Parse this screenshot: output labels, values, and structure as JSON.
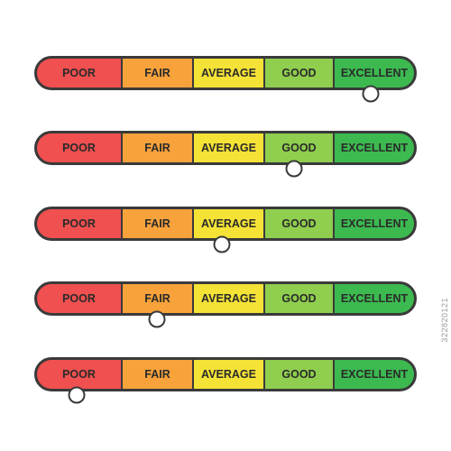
{
  "levels": [
    {
      "label": "POOR",
      "color": "#f0504f"
    },
    {
      "label": "FAIR",
      "color": "#f7a23b"
    },
    {
      "label": "AVERAGE",
      "color": "#f4e236"
    },
    {
      "label": "GOOD",
      "color": "#8fce4e"
    },
    {
      "label": "EXCELLENT",
      "color": "#3cba50"
    }
  ],
  "meters": [
    {
      "rating": "EXCELLENT",
      "value": 0.88
    },
    {
      "rating": "GOOD",
      "value": 0.68
    },
    {
      "rating": "AVERAGE",
      "value": 0.49
    },
    {
      "rating": "FAIR",
      "value": 0.32
    },
    {
      "rating": "POOR",
      "value": 0.11
    }
  ],
  "watermark": "322820121",
  "colors": {
    "outline": "#3a3a3a",
    "background": "#ffffff"
  }
}
